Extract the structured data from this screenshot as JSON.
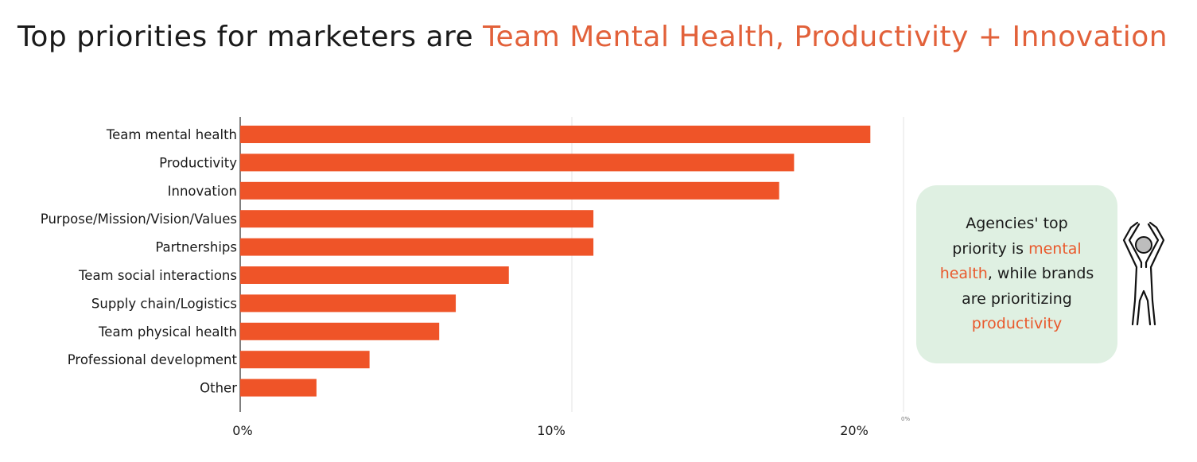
{
  "title": {
    "prefix": "Top priorities for marketers are ",
    "highlight": "Team Mental Health, Productivity + Innovation"
  },
  "colors": {
    "bar": "#ef5428",
    "accent": "#e2613a",
    "callout_bg": "#dff0e2",
    "grid": "#e3e3e3"
  },
  "chart_data": {
    "type": "bar",
    "orientation": "horizontal",
    "title": "Top priorities for marketers are Team Mental Health, Productivity + Innovation",
    "xlabel": "",
    "ylabel": "",
    "unit": "%",
    "xlim": [
      0,
      20
    ],
    "grid": true,
    "categories": [
      "Team mental health",
      "Productivity",
      "Innovation",
      "Purpose/Mission/Vision/Values",
      "Partnerships",
      "Team social interactions",
      "Supply chain/Logistics",
      "Team physical health",
      "Professional development",
      "Other"
    ],
    "values": [
      19.0,
      16.7,
      16.25,
      10.65,
      10.65,
      8.1,
      6.5,
      6.0,
      3.9,
      2.3
    ],
    "x_ticks": [
      {
        "value": 0,
        "label": "0%"
      },
      {
        "value": 10,
        "label": "10%"
      },
      {
        "value": 20,
        "label": "20%"
      }
    ],
    "extra_tick_label": "0%"
  },
  "callout": {
    "line1": "Agencies' top",
    "line2a": "priority is ",
    "line2b": "mental",
    "line3a": "health",
    "line3b": ", while brands",
    "line4": "are prioritizing",
    "line5": "productivity"
  },
  "icons": {
    "figure": "person-arms-raised-icon"
  }
}
